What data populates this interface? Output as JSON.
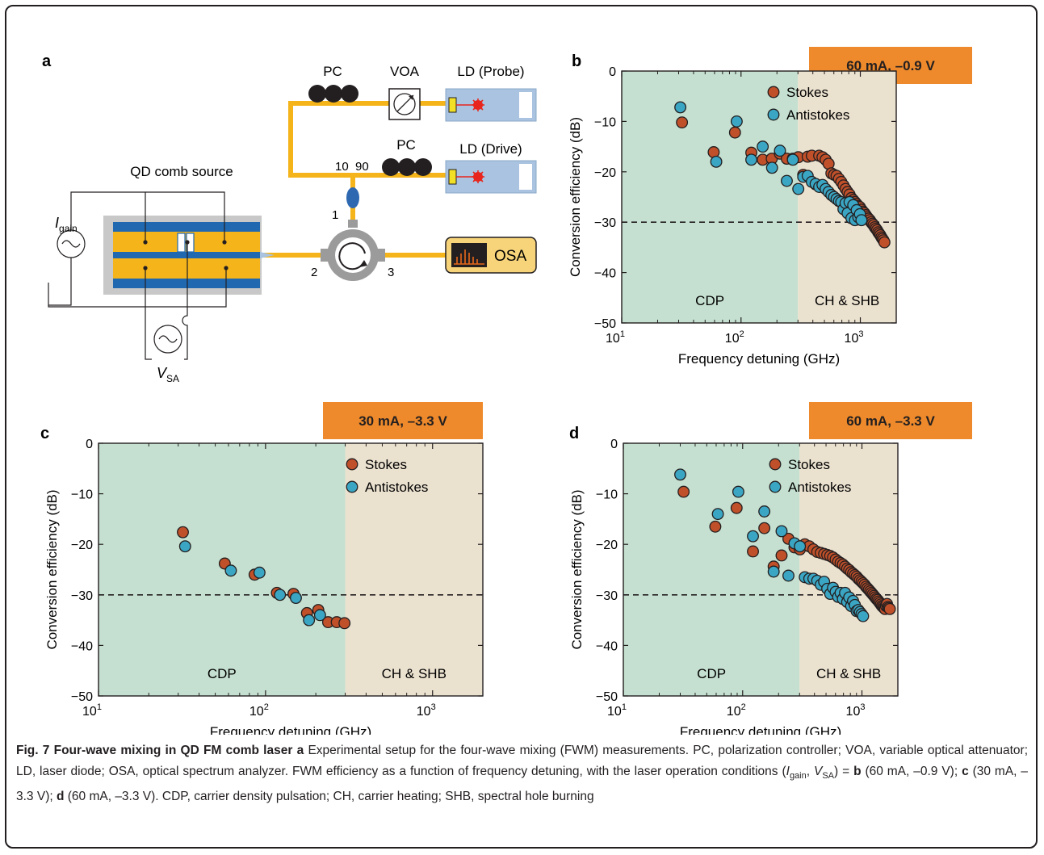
{
  "panel_letters": {
    "a": "a",
    "b": "b",
    "c": "c",
    "d": "d"
  },
  "setup": {
    "pc_top": "PC",
    "voa": "VOA",
    "ld_probe": "LD (Probe)",
    "ld_drive": "LD (Drive)",
    "pc_mid": "PC",
    "split_10": "10",
    "split_90": "90",
    "qd_source": "QD comb source",
    "i_gain_main": "I",
    "i_gain_sub": "gain",
    "v_sa_main": "V",
    "v_sa_sub": "SA",
    "port1": "1",
    "port2": "2",
    "port3": "3",
    "osa": "OSA"
  },
  "chart_data": [
    {
      "panel": "b",
      "type": "scatter",
      "badge": "60 mA, –0.9 V",
      "xlabel": "Frequency detuning (GHz)",
      "ylabel": "Conversion efficiency (dB)",
      "xscale": "log",
      "xlim": [
        10,
        2000
      ],
      "ylim": [
        -50,
        0
      ],
      "yticks": [
        "0",
        "−10",
        "−20",
        "−30",
        "−40",
        "−50"
      ],
      "xticks": [
        {
          "base": "10",
          "exp": "1"
        },
        {
          "base": "10",
          "exp": "2"
        },
        {
          "base": "10",
          "exp": "3"
        }
      ],
      "region_boundary": 300,
      "region_left": "CDP",
      "region_right": "CH & SHB",
      "reference_line": -30,
      "legend_position": "top-right",
      "series": [
        {
          "name": "Stokes",
          "color": "#c0502a",
          "x": [
            32,
            59,
            89,
            122,
            152,
            181,
            212,
            242,
            272,
            302,
            332,
            362,
            392,
            422,
            452,
            482,
            512,
            542,
            572,
            602,
            632,
            662,
            692,
            722,
            752,
            782,
            812,
            842,
            872,
            902,
            932,
            962,
            992,
            1022,
            1052,
            1082,
            1112,
            1142,
            1172,
            1202,
            1232,
            1262,
            1292,
            1322,
            1352,
            1382,
            1412,
            1442,
            1472,
            1502,
            1532,
            1562,
            1592
          ],
          "y": [
            -10.2,
            -16.1,
            -12.2,
            -16.2,
            -17.6,
            -17.4,
            -16.4,
            -17.4,
            -17.4,
            -17.1,
            -20.6,
            -17.0,
            -16.8,
            -22.5,
            -16.8,
            -17.1,
            -17.6,
            -18.4,
            -20.3,
            -20.6,
            -20.8,
            -21.4,
            -22.0,
            -22.7,
            -23.4,
            -24.0,
            -24.5,
            -25.2,
            -25.6,
            -26.0,
            -26.4,
            -26.8,
            -27.0,
            -27.5,
            -27.9,
            -28.2,
            -28.6,
            -29.0,
            -29.3,
            -29.6,
            -30.0,
            -30.3,
            -30.6,
            -31.0,
            -31.3,
            -31.6,
            -32.0,
            -32.3,
            -32.6,
            -33.0,
            -33.3,
            -33.6,
            -34.0
          ]
        },
        {
          "name": "Antistokes",
          "color": "#3ba6c4",
          "x": [
            31,
            62,
            92,
            122,
            152,
            182,
            212,
            242,
            272,
            302,
            332,
            362,
            392,
            422,
            452,
            482,
            512,
            542,
            572,
            602,
            632,
            662,
            692,
            722,
            752,
            782,
            812,
            842,
            872,
            902,
            932,
            962,
            992,
            1022
          ],
          "y": [
            -7.2,
            -18.0,
            -10.0,
            -17.6,
            -15.0,
            -19.2,
            -15.8,
            -21.8,
            -17.6,
            -23.4,
            -21.0,
            -20.8,
            -22.0,
            -22.4,
            -23.0,
            -22.6,
            -23.4,
            -24.0,
            -24.6,
            -25.0,
            -25.4,
            -25.8,
            -26.0,
            -27.4,
            -26.2,
            -28.2,
            -26.0,
            -29.2,
            -26.6,
            -29.6,
            -27.6,
            -29.0,
            -28.4,
            -29.6
          ]
        }
      ]
    },
    {
      "panel": "c",
      "type": "scatter",
      "badge": "30 mA, –3.3 V",
      "xlabel": "Frequency detuning (GHz)",
      "ylabel": "Conversion efficiency (dB)",
      "xscale": "log",
      "xlim": [
        10,
        2000
      ],
      "ylim": [
        -50,
        0
      ],
      "yticks": [
        "0",
        "−10",
        "−20",
        "−30",
        "−40",
        "−50"
      ],
      "xticks": [
        {
          "base": "10",
          "exp": "1"
        },
        {
          "base": "10",
          "exp": "2"
        },
        {
          "base": "10",
          "exp": "3"
        }
      ],
      "region_boundary": 300,
      "region_left": "CDP",
      "region_right": "CH & SHB",
      "reference_line": -30,
      "legend_position": "top-right",
      "series": [
        {
          "name": "Stokes",
          "color": "#c0502a",
          "x": [
            32,
            57,
            86,
            117,
            147,
            177,
            207,
            237,
            267,
            297
          ],
          "y": [
            -17.6,
            -23.8,
            -26.0,
            -29.6,
            -29.8,
            -33.6,
            -33.0,
            -35.4,
            -35.4,
            -35.6
          ]
        },
        {
          "name": "Antistokes",
          "color": "#3ba6c4",
          "x": [
            33,
            62,
            92,
            122,
            152,
            182,
            212
          ],
          "y": [
            -20.4,
            -25.2,
            -25.6,
            -30.0,
            -30.6,
            -35.0,
            -34.0
          ]
        }
      ]
    },
    {
      "panel": "d",
      "type": "scatter",
      "badge": "60 mA, –3.3 V",
      "xlabel": "Frequency detuning (GHz)",
      "ylabel": "Conversion efficiency (dB)",
      "xscale": "log",
      "xlim": [
        10,
        2000
      ],
      "ylim": [
        -50,
        0
      ],
      "yticks": [
        "0",
        "−10",
        "−20",
        "−30",
        "−40",
        "−50"
      ],
      "xticks": [
        {
          "base": "10",
          "exp": "1"
        },
        {
          "base": "10",
          "exp": "2"
        },
        {
          "base": "10",
          "exp": "3"
        }
      ],
      "region_boundary": 300,
      "region_left": "CDP",
      "region_right": "CH & SHB",
      "reference_line": -30,
      "legend_position": "top-right",
      "series": [
        {
          "name": "Stokes",
          "color": "#c0502a",
          "x": [
            32,
            59,
            89,
            122,
            152,
            182,
            212,
            242,
            272,
            302,
            332,
            362,
            392,
            422,
            452,
            482,
            512,
            542,
            572,
            602,
            632,
            662,
            692,
            722,
            752,
            782,
            812,
            842,
            872,
            902,
            932,
            962,
            992,
            1022,
            1052,
            1082,
            1112,
            1142,
            1172,
            1202,
            1232,
            1262,
            1292,
            1322,
            1352,
            1382,
            1412,
            1442,
            1472,
            1502,
            1532,
            1562,
            1592,
            1622,
            1652,
            1682,
            1712
          ],
          "y": [
            -9.6,
            -16.5,
            -12.8,
            -21.4,
            -16.8,
            -24.4,
            -22.2,
            -18.9,
            -20.6,
            -21.0,
            -20.0,
            -20.4,
            -21.0,
            -21.5,
            -21.7,
            -21.9,
            -22.1,
            -22.3,
            -22.6,
            -23.0,
            -23.4,
            -23.7,
            -24.0,
            -24.4,
            -24.8,
            -25.1,
            -25.5,
            -25.8,
            -26.1,
            -26.4,
            -26.8,
            -27.1,
            -27.4,
            -27.7,
            -28.0,
            -28.4,
            -28.7,
            -29.0,
            -29.3,
            -29.6,
            -29.9,
            -30.2,
            -30.5,
            -30.8,
            -31.0,
            -31.3,
            -31.6,
            -31.9,
            -32.2,
            -32.4,
            -32.6,
            -32.8,
            -32.2,
            -31.8,
            -32.4,
            -32.6,
            -32.8
          ]
        },
        {
          "name": "Antistokes",
          "color": "#3ba6c4",
          "x": [
            30,
            62,
            92,
            122,
            152,
            182,
            212,
            242,
            272,
            302,
            332,
            362,
            392,
            422,
            452,
            482,
            512,
            542,
            572,
            602,
            632,
            662,
            692,
            722,
            752,
            782,
            812,
            842,
            872,
            902,
            932,
            962,
            992,
            1022
          ],
          "y": [
            -6.2,
            -14.0,
            -9.6,
            -18.4,
            -13.5,
            -25.4,
            -17.4,
            -26.2,
            -19.8,
            -20.4,
            -26.5,
            -26.8,
            -26.8,
            -27.2,
            -28.0,
            -27.4,
            -28.8,
            -29.8,
            -28.6,
            -29.4,
            -30.4,
            -29.6,
            -30.8,
            -29.6,
            -31.4,
            -30.5,
            -32.2,
            -31.2,
            -32.0,
            -33.2,
            -33.0,
            -33.4,
            -33.8,
            -34.2
          ]
        }
      ]
    }
  ],
  "caption": {
    "title": "Fig. 7 Four-wave mixing in QD FM comb laser",
    "title_letter": "a",
    "text1": "Experimental setup for the four-wave mixing (FWM) measurements. PC, polarization controller; VOA, variable optical attenuator; LD, laser diode; OSA, optical spectrum analyzer. FWM efficiency as a function of frequency detuning, with the laser operation conditions (",
    "i_main": "I",
    "i_sub": "gain",
    "sep": ", ",
    "v_main": "V",
    "v_sub": "SA",
    "eq": ") = ",
    "b_letter": "b",
    "b_cond": " (60 mA, –0.9 V); ",
    "c_letter": "c",
    "c_cond": " (30 mA, –3.3 V); ",
    "d_letter": "d",
    "d_cond": " (60 mA, –3.3 V). CDP, carrier density pulsation; CH, carrier heating; SHB, spectral hole burning"
  }
}
